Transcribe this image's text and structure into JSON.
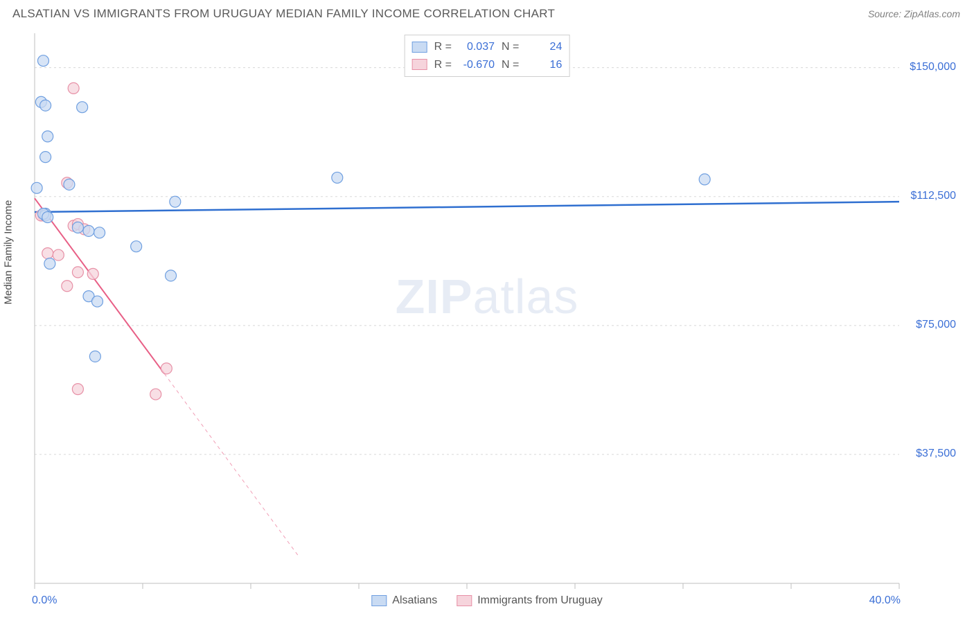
{
  "header": {
    "title": "ALSATIAN VS IMMIGRANTS FROM URUGUAY MEDIAN FAMILY INCOME CORRELATION CHART",
    "source": "Source: ZipAtlas.com"
  },
  "ylabel": "Median Family Income",
  "watermark_zip": "ZIP",
  "watermark_atlas": "atlas",
  "chart": {
    "type": "scatter",
    "xlim": [
      0,
      40
    ],
    "ylim": [
      0,
      160000
    ],
    "xticks": [
      0,
      5,
      10,
      15,
      20,
      25,
      30,
      35,
      40
    ],
    "yticks": [
      37500,
      75000,
      112500,
      150000
    ],
    "ytick_labels": [
      "$37,500",
      "$75,000",
      "$112,500",
      "$150,000"
    ],
    "xaxis_min_label": "0.0%",
    "xaxis_max_label": "40.0%",
    "grid_color": "#d8d8d8",
    "axis_color": "#bfbfbf",
    "background_color": "#ffffff",
    "label_color": "#3b6fd6",
    "marker_radius": 8,
    "marker_stroke_width": 1.2,
    "series": [
      {
        "name": "Alsatians",
        "color_fill": "#c9dbf3",
        "color_stroke": "#6f9fe0",
        "line_color": "#2f6fd0",
        "line_width": 2.5,
        "R": "0.037",
        "N": "24",
        "trend": {
          "x1": 0,
          "y1": 108000,
          "x2": 40,
          "y2": 111000,
          "dashed_after_x": 40
        },
        "points": [
          [
            0.4,
            152000
          ],
          [
            0.3,
            140000
          ],
          [
            0.5,
            139000
          ],
          [
            2.2,
            138500
          ],
          [
            0.6,
            130000
          ],
          [
            0.5,
            124000
          ],
          [
            0.1,
            115000
          ],
          [
            1.6,
            116000
          ],
          [
            14.0,
            118000
          ],
          [
            31.0,
            117500
          ],
          [
            6.5,
            111000
          ],
          [
            0.5,
            107500
          ],
          [
            2.0,
            103500
          ],
          [
            2.5,
            102500
          ],
          [
            3.0,
            102000
          ],
          [
            4.7,
            98000
          ],
          [
            0.7,
            93000
          ],
          [
            6.3,
            89500
          ],
          [
            2.5,
            83500
          ],
          [
            2.9,
            82000
          ],
          [
            2.8,
            66000
          ],
          [
            0.5,
            107000
          ],
          [
            0.4,
            107500
          ],
          [
            0.6,
            106500
          ]
        ]
      },
      {
        "name": "Immigrants from Uruguay",
        "color_fill": "#f6d4dc",
        "color_stroke": "#e790a6",
        "line_color": "#e85f86",
        "line_width": 2,
        "R": "-0.670",
        "N": "16",
        "trend": {
          "x1": 0,
          "y1": 112000,
          "x2": 6.0,
          "y2": 61000,
          "dashed_to_x": 12.2,
          "dashed_to_y": 8000
        },
        "points": [
          [
            1.8,
            144000
          ],
          [
            1.5,
            116500
          ],
          [
            0.4,
            107000
          ],
          [
            0.5,
            107500
          ],
          [
            1.8,
            104000
          ],
          [
            2.0,
            104500
          ],
          [
            2.3,
            103000
          ],
          [
            0.6,
            96000
          ],
          [
            1.1,
            95500
          ],
          [
            2.0,
            90500
          ],
          [
            2.7,
            90000
          ],
          [
            1.5,
            86500
          ],
          [
            2.0,
            56500
          ],
          [
            6.1,
            62500
          ],
          [
            5.6,
            55000
          ],
          [
            0.3,
            107000
          ]
        ]
      }
    ]
  },
  "legend_top_labels": {
    "R": "R =",
    "N": "N ="
  },
  "legend_bottom": [
    "Alsatians",
    "Immigrants from Uruguay"
  ]
}
